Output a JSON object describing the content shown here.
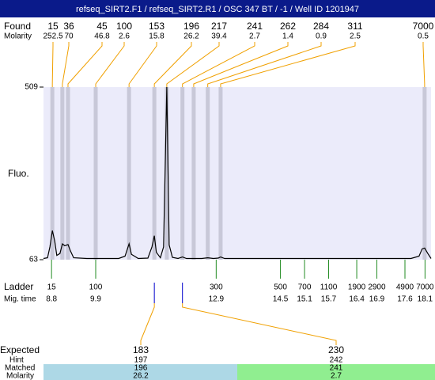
{
  "title": "refseq_SIRT2.F1 / refseq_SIRT2.R1 / OSC 347 BT / -1 / Well ID 1201947",
  "labels": {
    "found": "Found",
    "found_molarity": "Molarity",
    "fluo": "Fluo.",
    "ladder": "Ladder",
    "mig_time": "Mig. time",
    "expected": "Expected",
    "hint": "Hint",
    "matched": "Matched",
    "molarity": "Molarity"
  },
  "chart_data": {
    "type": "electropherogram",
    "xlim": [
      8.6,
      18.25
    ],
    "ylim": [
      63,
      509
    ],
    "yticks": [
      509,
      63
    ],
    "trace": {
      "x": [
        8.6,
        8.7,
        8.76,
        8.82,
        8.88,
        8.93,
        9.01,
        9.07,
        9.13,
        9.21,
        9.27,
        9.35,
        9.68,
        10.47,
        10.63,
        10.73,
        10.79,
        10.96,
        11.2,
        11.3,
        11.36,
        11.41,
        11.51,
        11.59,
        11.67,
        11.73,
        11.81,
        11.95,
        12.06,
        12.16,
        12.54,
        12.69,
        12.83,
        12.95,
        13.01,
        13.11,
        15.39,
        17.75,
        17.95,
        18.03,
        18.09,
        18.17,
        18.25
      ],
      "values": [
        66,
        68,
        96,
        138,
        111,
        74,
        79,
        104,
        99,
        102,
        86,
        68,
        66,
        66,
        72,
        104,
        77,
        66,
        67,
        96,
        125,
        82,
        68,
        96,
        509,
        101,
        69,
        66,
        70,
        66,
        66,
        68,
        66,
        67,
        70,
        66,
        66,
        66,
        72,
        91,
        93,
        79,
        66
      ]
    },
    "found": {
      "sizes": [
        15,
        36,
        45,
        100,
        153,
        196,
        217,
        241,
        262,
        284,
        311,
        7000
      ],
      "molarity": [
        252.5,
        70,
        46.8,
        2.6,
        15.8,
        26.2,
        39.4,
        2.7,
        1.4,
        0.9,
        2.5,
        0.5
      ],
      "x": [
        8.82,
        9.07,
        9.21,
        9.9,
        10.73,
        11.36,
        11.67,
        12.06,
        12.34,
        12.69,
        13.01,
        18.09
      ]
    },
    "ladder": {
      "sizes": [
        15,
        100,
        300,
        500,
        700,
        1100,
        1900,
        2900,
        4900,
        7000
      ],
      "x": [
        8.8,
        9.9,
        12.9,
        14.5,
        15.1,
        15.7,
        16.4,
        16.9,
        17.6,
        18.1
      ]
    },
    "expected": {
      "sizes": [
        183,
        230
      ],
      "hint": [
        197,
        242
      ],
      "matched": [
        196,
        241
      ],
      "molarity": [
        26.2,
        2.7
      ]
    }
  }
}
